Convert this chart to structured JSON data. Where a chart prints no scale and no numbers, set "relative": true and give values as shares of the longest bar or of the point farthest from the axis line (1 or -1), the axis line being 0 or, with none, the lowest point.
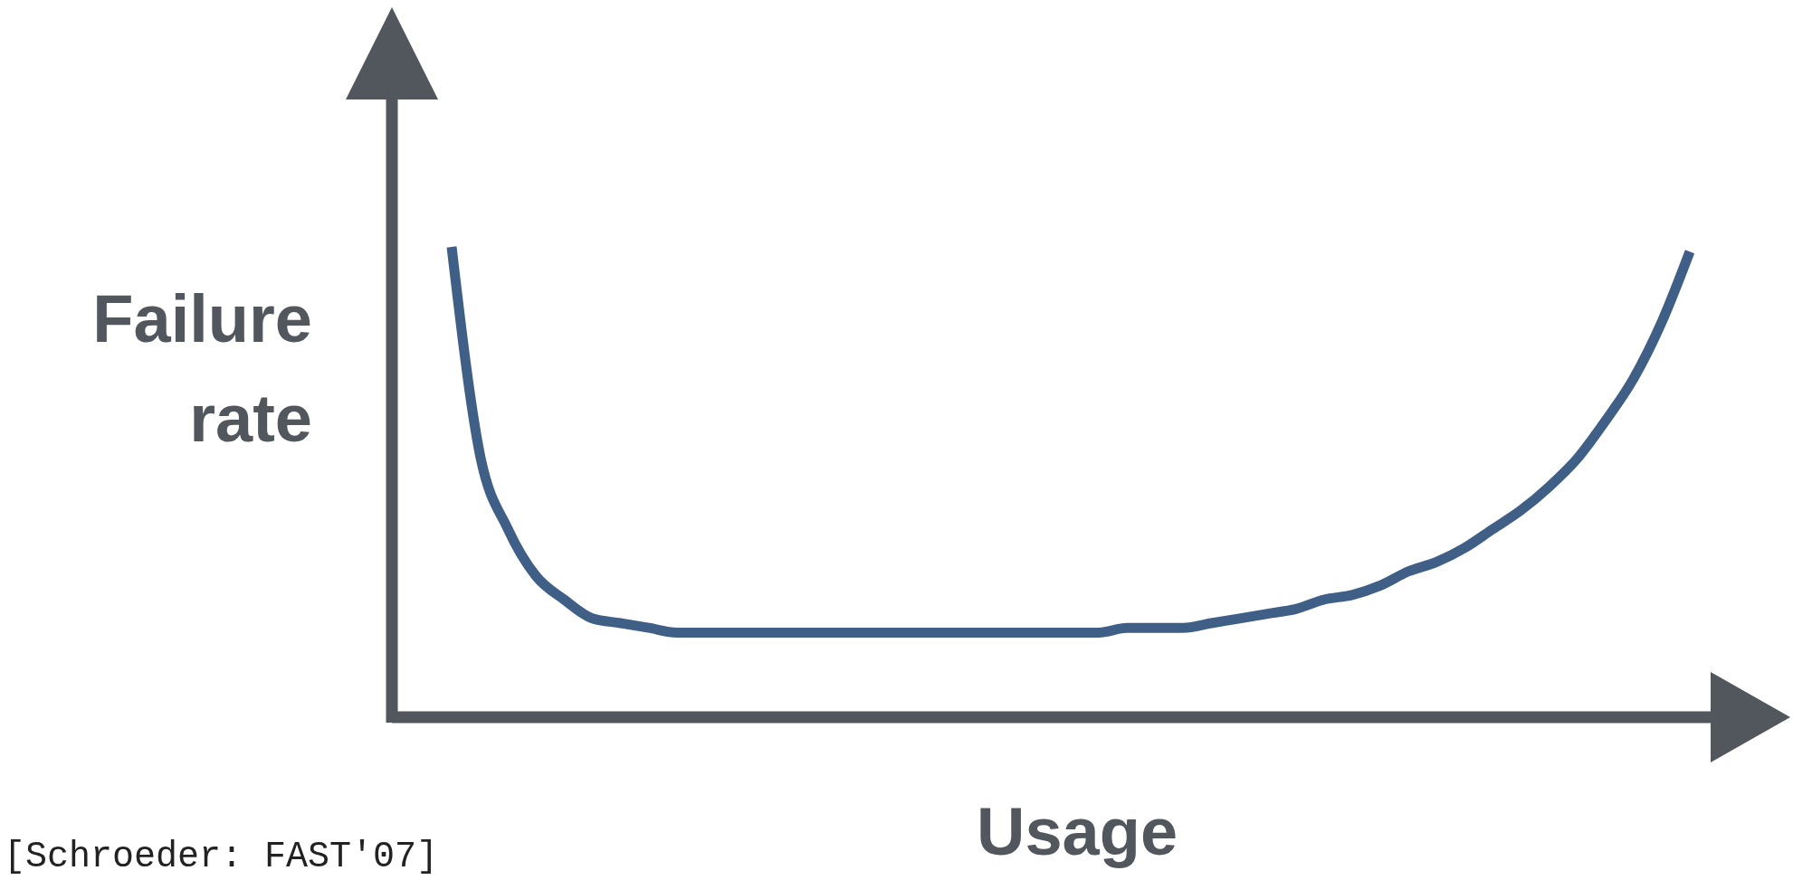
{
  "chart_data": {
    "type": "line",
    "relative": true,
    "xlabel": "Usage",
    "ylabel": "Failure rate",
    "annotations": [
      "[Schroeder: FAST'07]"
    ],
    "categories": [
      null,
      null,
      null,
      null,
      null,
      null,
      null,
      null,
      null,
      null,
      null,
      null,
      null,
      null,
      null,
      null,
      null,
      null,
      null,
      null,
      null,
      null,
      null,
      null,
      null,
      null,
      null,
      null,
      null,
      null,
      null,
      null,
      null,
      null,
      null,
      null,
      null,
      null,
      null,
      null,
      null,
      null,
      null,
      null,
      null
    ],
    "series": [
      {
        "color": "#3f5f86",
        "values": [
          1,
          0.56,
          0.4,
          0.3,
          0.25,
          0.21,
          0.2,
          0.19,
          0.18,
          0.18,
          0.18,
          0.18,
          0.18,
          0.18,
          0.18,
          0.18,
          0.18,
          0.18,
          0.18,
          0.18,
          0.18,
          0.18,
          0.18,
          0.18,
          0.19,
          0.19,
          0.19,
          0.2,
          0.21,
          0.22,
          0.23,
          0.25,
          0.26,
          0.28,
          0.31,
          0.33,
          0.36,
          0.4,
          0.44,
          0.49,
          0.55,
          0.63,
          0.72,
          0.84,
          0.99
        ]
      }
    ],
    "marker": "none",
    "line_style": "solid",
    "grid": false
  }
}
